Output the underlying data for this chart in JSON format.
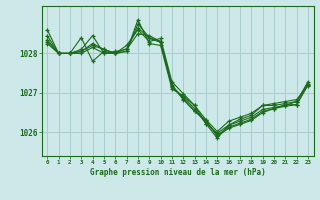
{
  "background_color": "#cce8e8",
  "grid_color": "#aacccc",
  "line_color": "#1a6b1a",
  "xlabel": "Graphe pression niveau de la mer (hPa)",
  "yticks": [
    1026,
    1027,
    1028
  ],
  "xticks": [
    0,
    1,
    2,
    3,
    4,
    5,
    6,
    7,
    8,
    9,
    10,
    11,
    12,
    13,
    14,
    15,
    16,
    17,
    18,
    19,
    20,
    21,
    22,
    23
  ],
  "ylim": [
    1025.4,
    1029.2
  ],
  "xlim": [
    -0.5,
    23.5
  ],
  "series": [
    [
      1028.6,
      1028.0,
      1028.0,
      1028.0,
      1028.15,
      1028.0,
      1028.05,
      1028.1,
      1028.5,
      1028.45,
      1028.3,
      1027.2,
      1026.85,
      1026.55,
      1026.3,
      1025.9,
      1026.1,
      1026.2,
      1026.3,
      1026.5,
      1026.6,
      1026.7,
      1026.7,
      1027.2
    ],
    [
      1028.3,
      1028.0,
      1028.0,
      1028.4,
      1027.8,
      1028.05,
      1028.0,
      1028.05,
      1028.75,
      1028.4,
      1028.3,
      1027.15,
      1026.9,
      1026.6,
      1026.22,
      1025.85,
      1026.18,
      1026.28,
      1026.38,
      1026.58,
      1026.63,
      1026.68,
      1026.78,
      1027.23
    ],
    [
      1028.25,
      1028.0,
      1028.0,
      1028.05,
      1028.25,
      1028.1,
      1028.0,
      1028.05,
      1028.85,
      1028.25,
      1028.2,
      1027.1,
      1026.92,
      1026.68,
      1026.22,
      1025.98,
      1026.18,
      1026.33,
      1026.43,
      1026.68,
      1026.68,
      1026.73,
      1026.78,
      1027.28
    ],
    [
      1028.35,
      1028.0,
      1028.0,
      1028.05,
      1028.2,
      1028.1,
      1028.0,
      1028.2,
      1028.6,
      1028.3,
      1028.38,
      1027.28,
      1026.98,
      1026.68,
      1026.32,
      1026.02,
      1026.28,
      1026.38,
      1026.48,
      1026.68,
      1026.73,
      1026.78,
      1026.83,
      1027.18
    ],
    [
      1028.45,
      1028.0,
      1028.0,
      1028.1,
      1028.45,
      1028.0,
      1028.0,
      1028.12,
      1028.65,
      1028.38,
      1028.28,
      1027.18,
      1026.83,
      1026.53,
      1026.28,
      1025.93,
      1026.13,
      1026.23,
      1026.33,
      1026.53,
      1026.6,
      1026.66,
      1026.7,
      1027.2
    ]
  ]
}
